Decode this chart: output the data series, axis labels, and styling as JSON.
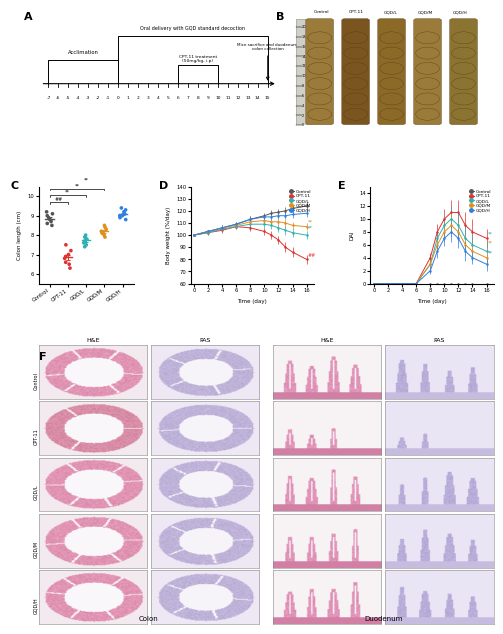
{
  "panel_A": {
    "acclimation_label": "Acclimation",
    "gqd_label": "Oral delivery with GQD standard decoction",
    "cpt11_label": "CPT-11 treatment\n(50mg/kg, i.p)",
    "sacrifice_label": "Mice sacrifice and duodenum,\ncolon collection"
  },
  "panel_B_labels": [
    "Control",
    "CPT-11",
    "GQD/L",
    "GQD/M",
    "GQD/H"
  ],
  "panel_C": {
    "groups": [
      "Control",
      "CPT-11",
      "GQD/L",
      "GQD/M",
      "GQD/H"
    ],
    "data": {
      "Control": [
        8.9,
        9.1,
        8.7,
        8.8,
        9.0,
        8.6,
        9.2,
        8.5
      ],
      "CPT-11": [
        7.0,
        6.5,
        6.8,
        7.2,
        6.3,
        7.5,
        6.6,
        6.9
      ],
      "GQD/L": [
        7.9,
        7.5,
        8.0,
        7.7,
        7.8,
        7.6,
        7.4,
        7.9
      ],
      "GQD/M": [
        8.0,
        8.3,
        8.1,
        8.5,
        7.9,
        8.2,
        8.4,
        8.1
      ],
      "GQD/H": [
        9.0,
        9.3,
        8.8,
        9.1,
        9.4,
        8.9,
        9.2,
        9.0
      ]
    },
    "colors": [
      "#555555",
      "#e03030",
      "#30b0b0",
      "#e09020",
      "#3080e0"
    ],
    "ylabel": "Colon length (cm)",
    "ylim": [
      5.5,
      10.5
    ]
  },
  "panel_D": {
    "time_points": [
      0,
      2,
      4,
      6,
      8,
      10,
      11,
      12,
      13,
      14,
      16
    ],
    "groups": [
      "Control",
      "CPT-11",
      "GQD/L",
      "GQD/M",
      "GQD/H"
    ],
    "colors": [
      "#555555",
      "#e03030",
      "#30b0b0",
      "#e09020",
      "#3080e0"
    ],
    "data": {
      "Control": [
        100,
        103,
        106,
        109,
        113,
        116,
        118,
        119,
        120,
        122,
        124
      ],
      "CPT-11": [
        100,
        102,
        104,
        107,
        106,
        103,
        100,
        96,
        90,
        86,
        80
      ],
      "GQD/L": [
        100,
        102,
        105,
        107,
        109,
        109,
        108,
        106,
        104,
        102,
        100
      ],
      "GQD/M": [
        100,
        103,
        106,
        108,
        111,
        112,
        111,
        111,
        110,
        108,
        107
      ],
      "GQD/H": [
        100,
        103,
        106,
        109,
        113,
        115,
        115,
        116,
        116,
        117,
        118
      ]
    },
    "errors": {
      "Control": [
        1,
        1.5,
        2,
        2,
        2.5,
        2.5,
        2.5,
        2.5,
        3,
        3,
        3
      ],
      "CPT-11": [
        1,
        1.5,
        2,
        2,
        2.5,
        3,
        3,
        3.5,
        4,
        4,
        4
      ],
      "GQD/L": [
        1,
        1.5,
        2,
        2,
        2.5,
        3,
        3,
        3.5,
        3.5,
        3.5,
        3.5
      ],
      "GQD/M": [
        1,
        1.5,
        2,
        2,
        2.5,
        2.5,
        2.5,
        3,
        3,
        3,
        3
      ],
      "GQD/H": [
        1,
        1.5,
        2,
        2,
        2.5,
        2.5,
        2.5,
        2.5,
        3,
        3,
        3
      ]
    },
    "ylabel": "Body weight (%/day)",
    "ylim": [
      60,
      140
    ],
    "xlabel": "Time (day)"
  },
  "panel_E": {
    "time_points": [
      0,
      2,
      4,
      6,
      8,
      9,
      10,
      11,
      12,
      13,
      14,
      16
    ],
    "groups": [
      "Control",
      "CPT-11",
      "GQD/L",
      "GQD/M",
      "GQD/H"
    ],
    "colors": [
      "#555555",
      "#e03030",
      "#30b0b0",
      "#e09020",
      "#3080e0"
    ],
    "data": {
      "Control": [
        0,
        0,
        0,
        0,
        0,
        0,
        0,
        0,
        0,
        0,
        0,
        0
      ],
      "CPT-11": [
        0,
        0,
        0,
        0,
        4,
        8,
        10,
        11,
        11,
        9,
        8,
        7
      ],
      "GQD/L": [
        0,
        0,
        0,
        0,
        3,
        7,
        9,
        10,
        9,
        7,
        6,
        5
      ],
      "GQD/M": [
        0,
        0,
        0,
        0,
        3,
        6,
        8,
        9,
        8,
        6,
        5,
        4
      ],
      "GQD/H": [
        0,
        0,
        0,
        0,
        2,
        5,
        7,
        8,
        7,
        5,
        4,
        3
      ]
    },
    "errors": {
      "Control": [
        0,
        0,
        0,
        0,
        0,
        0,
        0,
        0,
        0,
        0,
        0,
        0
      ],
      "CPT-11": [
        0,
        0,
        0,
        0,
        0.8,
        1.2,
        1.5,
        2,
        2,
        2,
        2,
        1.5
      ],
      "GQD/L": [
        0,
        0,
        0,
        0,
        0.8,
        1.2,
        1.5,
        2,
        2,
        2,
        1.5,
        1.5
      ],
      "GQD/M": [
        0,
        0,
        0,
        0,
        0.8,
        1.0,
        1.5,
        1.8,
        1.5,
        1.5,
        1.5,
        1.5
      ],
      "GQD/H": [
        0,
        0,
        0,
        0,
        0.5,
        1.0,
        1.2,
        1.5,
        1.5,
        1.5,
        1.0,
        1.0
      ]
    },
    "ylabel": "DAI",
    "ylim": [
      0,
      15
    ],
    "xlabel": "Time (day)"
  },
  "panel_F": {
    "row_labels": [
      "Control",
      "CPT-11",
      "GQD/L",
      "GQD/M",
      "GQD/H"
    ],
    "col_labels": [
      "H&E",
      "PAS",
      "H&E",
      "PAS"
    ],
    "section_labels": [
      "Colon",
      "Duodenum"
    ]
  },
  "bg_color": "#ffffff"
}
